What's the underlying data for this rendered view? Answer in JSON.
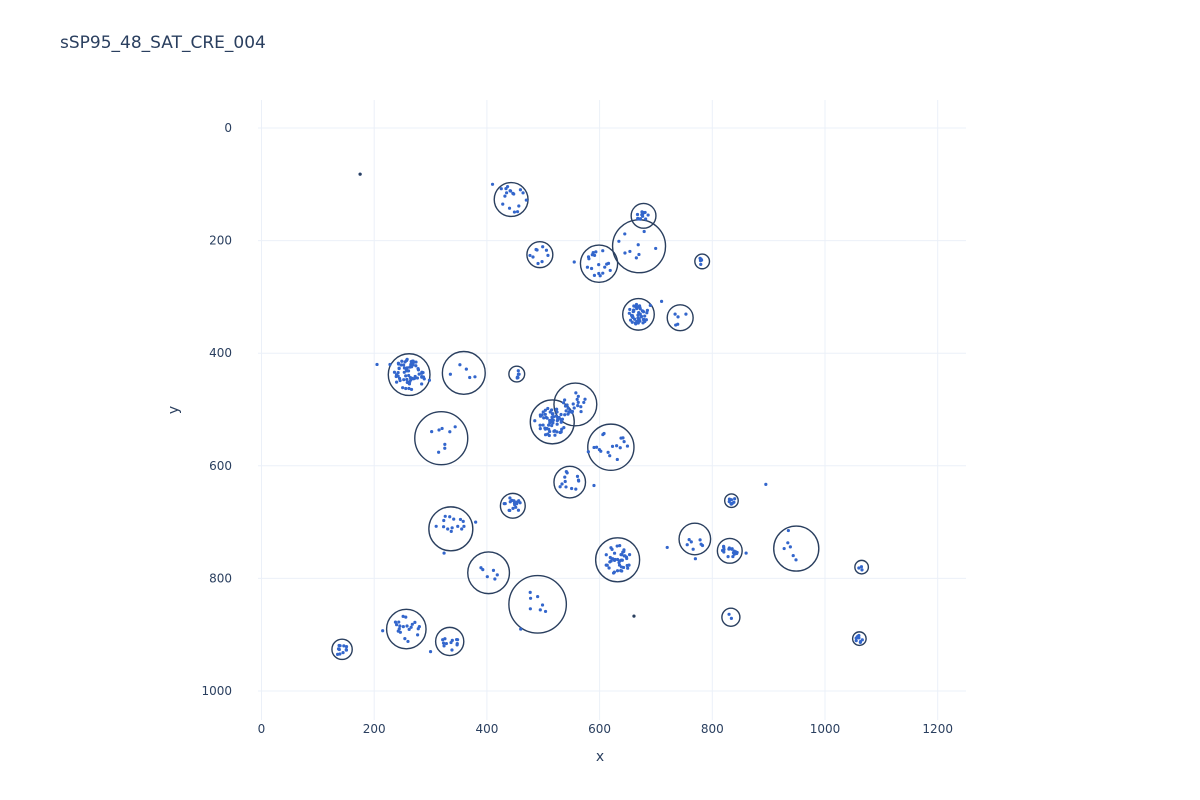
{
  "chart_data": {
    "type": "scatter",
    "title": "sSP95_48_SAT_CRE_004",
    "xlabel": "x",
    "ylabel": "y",
    "xlim": [
      -5,
      1250
    ],
    "ylim": [
      1050,
      -50
    ],
    "y_reversed": true,
    "grid": true,
    "x_ticks": [
      0,
      200,
      400,
      600,
      800,
      1000,
      1200
    ],
    "y_ticks": [
      0,
      200,
      400,
      600,
      800,
      1000
    ],
    "colors": {
      "points": "#3366cc",
      "circles": "#2a3f5f",
      "outlier_points": "#2a3f5f",
      "grid": "#ebf0f8",
      "text": "#2a3f5f"
    },
    "clusters": [
      {
        "cx": 443,
        "cy": 127,
        "r": 30
      },
      {
        "cx": 678,
        "cy": 156,
        "r": 22
      },
      {
        "cx": 670,
        "cy": 210,
        "r": 47
      },
      {
        "cx": 494,
        "cy": 225,
        "r": 23
      },
      {
        "cx": 599,
        "cy": 241,
        "r": 33
      },
      {
        "cx": 782,
        "cy": 237,
        "r": 13
      },
      {
        "cx": 669,
        "cy": 331,
        "r": 28
      },
      {
        "cx": 743,
        "cy": 337,
        "r": 23
      },
      {
        "cx": 262,
        "cy": 438,
        "r": 37
      },
      {
        "cx": 359,
        "cy": 435,
        "r": 38
      },
      {
        "cx": 453,
        "cy": 437,
        "r": 14
      },
      {
        "cx": 557,
        "cy": 491,
        "r": 38
      },
      {
        "cx": 516,
        "cy": 522,
        "r": 39
      },
      {
        "cx": 319,
        "cy": 551,
        "r": 47
      },
      {
        "cx": 620,
        "cy": 567,
        "r": 41
      },
      {
        "cx": 547,
        "cy": 629,
        "r": 28
      },
      {
        "cx": 834,
        "cy": 662,
        "r": 12
      },
      {
        "cx": 446,
        "cy": 671,
        "r": 22
      },
      {
        "cx": 336,
        "cy": 712,
        "r": 39
      },
      {
        "cx": 769,
        "cy": 730,
        "r": 28
      },
      {
        "cx": 949,
        "cy": 747,
        "r": 40
      },
      {
        "cx": 831,
        "cy": 751,
        "r": 22
      },
      {
        "cx": 632,
        "cy": 767,
        "r": 39
      },
      {
        "cx": 1065,
        "cy": 780,
        "r": 12
      },
      {
        "cx": 403,
        "cy": 790,
        "r": 37
      },
      {
        "cx": 490,
        "cy": 846,
        "r": 51
      },
      {
        "cx": 833,
        "cy": 869,
        "r": 16
      },
      {
        "cx": 257,
        "cy": 890,
        "r": 35
      },
      {
        "cx": 334,
        "cy": 912,
        "r": 25
      },
      {
        "cx": 1061,
        "cy": 907,
        "r": 12
      },
      {
        "cx": 143,
        "cy": 926,
        "r": 18
      }
    ],
    "points": [
      [
        443,
        127,
        26,
        16
      ],
      [
        678,
        156,
        12,
        14
      ],
      [
        670,
        210,
        40,
        8
      ],
      [
        494,
        225,
        18,
        9
      ],
      [
        599,
        241,
        24,
        18
      ],
      [
        782,
        237,
        7,
        5
      ],
      [
        669,
        331,
        18,
        45
      ],
      [
        743,
        337,
        14,
        4
      ],
      [
        262,
        438,
        28,
        65
      ],
      [
        359,
        435,
        25,
        5
      ],
      [
        453,
        437,
        8,
        6
      ],
      [
        557,
        491,
        22,
        22
      ],
      [
        516,
        522,
        26,
        60
      ],
      [
        319,
        551,
        32,
        8
      ],
      [
        620,
        567,
        30,
        16
      ],
      [
        547,
        629,
        20,
        12
      ],
      [
        834,
        662,
        7,
        8
      ],
      [
        446,
        671,
        16,
        18
      ],
      [
        336,
        712,
        28,
        14
      ],
      [
        769,
        730,
        20,
        7
      ],
      [
        949,
        747,
        26,
        5
      ],
      [
        831,
        751,
        14,
        18
      ],
      [
        632,
        767,
        26,
        42
      ],
      [
        1065,
        780,
        6,
        3
      ],
      [
        403,
        790,
        18,
        6
      ],
      [
        490,
        846,
        26,
        7
      ],
      [
        833,
        869,
        8,
        2
      ],
      [
        257,
        890,
        24,
        20
      ],
      [
        334,
        912,
        16,
        12
      ],
      [
        1061,
        907,
        7,
        10
      ],
      [
        143,
        926,
        10,
        10
      ]
    ],
    "scatter_extra": [
      [
        175,
        82
      ],
      [
        410,
        100
      ],
      [
        470,
        128
      ],
      [
        205,
        420
      ],
      [
        228,
        420
      ],
      [
        245,
        445
      ],
      [
        298,
        448
      ],
      [
        485,
        520
      ],
      [
        580,
        575
      ],
      [
        590,
        635
      ],
      [
        895,
        633
      ],
      [
        720,
        745
      ],
      [
        380,
        700
      ],
      [
        324,
        755
      ],
      [
        460,
        890
      ],
      [
        215,
        893
      ],
      [
        300,
        930
      ],
      [
        135,
        935
      ],
      [
        555,
        238
      ],
      [
        645,
        222
      ],
      [
        710,
        308
      ],
      [
        690,
        315
      ],
      [
        735,
        350
      ],
      [
        770,
        765
      ],
      [
        860,
        755
      ],
      [
        935,
        715
      ]
    ],
    "outliers": [
      [
        175,
        82
      ],
      [
        661,
        867
      ]
    ]
  }
}
